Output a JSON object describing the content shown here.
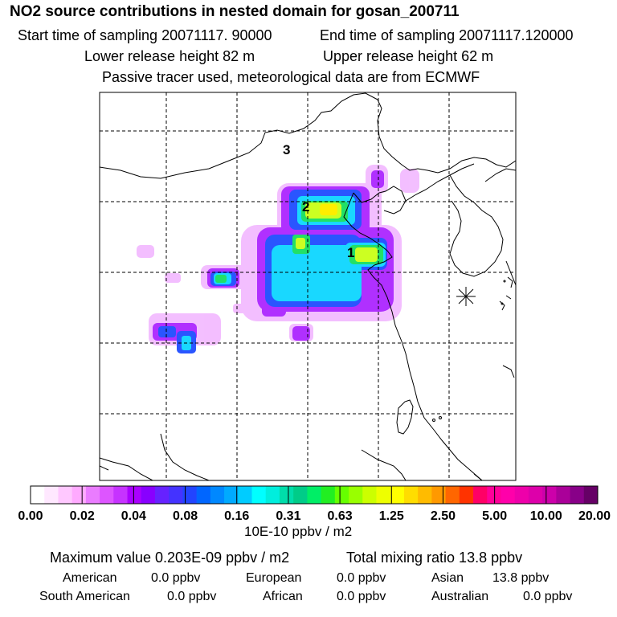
{
  "header": {
    "title": "NO2 source contributions in nested domain for gosan_200711",
    "start_sampling": "Start time of sampling 20071117. 90000",
    "end_sampling": "End time of sampling 20071117.120000",
    "lower_release": "Lower release height   82 m",
    "upper_release": "Upper release height   62 m",
    "tracer_note": "Passive tracer used, meteorological data are from ECMWF"
  },
  "map": {
    "region_labels": [
      "1",
      "2",
      "3"
    ],
    "receptor_marker": "receptor-star-icon",
    "land_outline_color": "#000000",
    "grid_line_style": "dashed"
  },
  "colorbar": {
    "tick_labels": [
      "0.00",
      "0.02",
      "0.04",
      "0.08",
      "0.16",
      "0.31",
      "0.63",
      "1.25",
      "2.50",
      "5.00",
      "10.00",
      "20.00"
    ],
    "colors": [
      "#ffffff",
      "#ffe8ff",
      "#ffc8ff",
      "#ffaaff",
      "#ea7cff",
      "#dd55ff",
      "#c633ff",
      "#aa00ff",
      "#8800ff",
      "#6622ff",
      "#4433ff",
      "#2244ff",
      "#0066ff",
      "#0088ff",
      "#00aaff",
      "#00ccff",
      "#00ffff",
      "#00eedd",
      "#00ddaa",
      "#00cc88",
      "#00ee66",
      "#22ee22",
      "#66ff00",
      "#99ff00",
      "#ccff00",
      "#eeff00",
      "#ffff00",
      "#ffdd00",
      "#ffbb00",
      "#ff9900",
      "#ff6600",
      "#ff3300",
      "#ff0066",
      "#ff0099",
      "#ff00aa",
      "#ee00aa",
      "#dd00aa",
      "#cc00aa",
      "#aa0099",
      "#880088",
      "#660066"
    ],
    "unit": "10E-10 ppbv / m2"
  },
  "summary": {
    "maximum_value": "Maximum value  0.203E-09 ppbv / m2",
    "total_mixing": "Total mixing ratio       13.8 ppbv",
    "regions_row1": [
      {
        "name": "American",
        "value": "0.0 ppbv"
      },
      {
        "name": "European",
        "value": "0.0 ppbv"
      },
      {
        "name": "Asian",
        "value": "13.8 ppbv"
      }
    ],
    "regions_row2": [
      {
        "name": "South American",
        "value": "0.0 ppbv"
      },
      {
        "name": "African",
        "value": "0.0 ppbv"
      },
      {
        "name": "Australian",
        "value": "0.0 ppbv"
      }
    ]
  }
}
